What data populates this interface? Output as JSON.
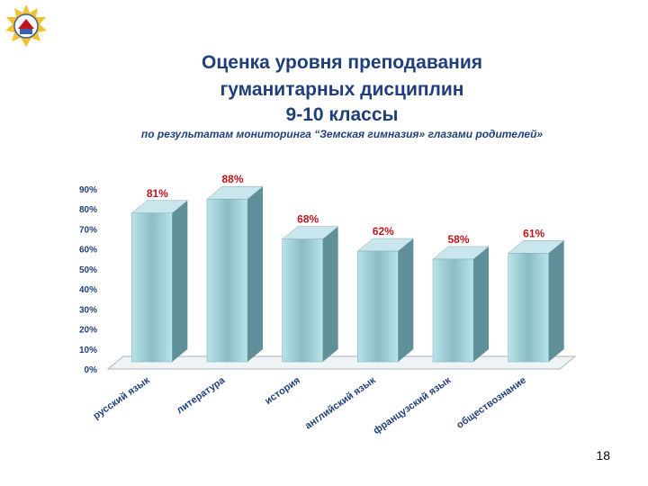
{
  "slide": {
    "title_lines": [
      "Оценка уровня преподавания",
      "гуманитарных дисциплин",
      "9-10 классы"
    ],
    "subtitle": "по результатам  мониторинга “Земская гимназия» глазами родителей»",
    "page_number": "18"
  },
  "colors": {
    "title": "#1f3f7a",
    "bar_face": "#a7d4dc",
    "bar_side": "#5f9099",
    "value_label": "#c0141c",
    "axis_label": "#1f3f7a"
  },
  "chart_data": {
    "type": "bar",
    "three_d": true,
    "categories": [
      "русский язык",
      "литература",
      "история",
      "английский язык",
      "французский язык",
      "обществознание"
    ],
    "values": [
      81,
      88,
      68,
      62,
      58,
      61
    ],
    "value_labels": [
      "81%",
      "88%",
      "68%",
      "62%",
      "58%",
      "61%"
    ],
    "y_ticks": [
      "0%",
      "10%",
      "20%",
      "30%",
      "40%",
      "50%",
      "60%",
      "70%",
      "80%",
      "90%"
    ],
    "ylim": [
      0,
      90
    ],
    "grid": false,
    "legend": "none"
  }
}
